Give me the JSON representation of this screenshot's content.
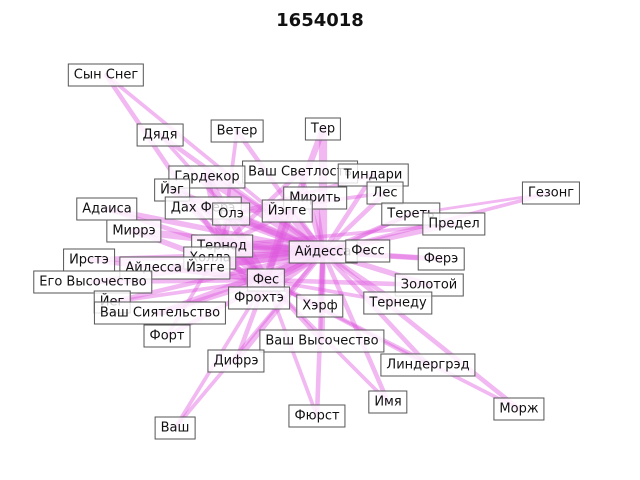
{
  "title": "1654018",
  "edge_color": "#dd55dd",
  "nodes": [
    {
      "id": "syn-sneg",
      "label": "Сын Снег"
    },
    {
      "id": "dyadya",
      "label": "Дядя"
    },
    {
      "id": "veter",
      "label": "Ветер"
    },
    {
      "id": "ter",
      "label": "Тер"
    },
    {
      "id": "vash-svetlost",
      "label": "Ваш Светлость"
    },
    {
      "id": "tindari",
      "label": "Тиндари"
    },
    {
      "id": "gezong",
      "label": "Гезонг"
    },
    {
      "id": "gardekor",
      "label": "Гардекор"
    },
    {
      "id": "ieg",
      "label": "Йэг"
    },
    {
      "id": "mirit",
      "label": "Мирить"
    },
    {
      "id": "les",
      "label": "Лес"
    },
    {
      "id": "adaisa",
      "label": "Адаиса"
    },
    {
      "id": "dakh-fere",
      "label": "Дах Ферэ"
    },
    {
      "id": "ole",
      "label": "Олэ"
    },
    {
      "id": "iegge",
      "label": "Йэггe"
    },
    {
      "id": "teret",
      "label": "Тереть"
    },
    {
      "id": "predel",
      "label": "Предел"
    },
    {
      "id": "mirre",
      "label": "Миррэ"
    },
    {
      "id": "ternod",
      "label": "Тернод"
    },
    {
      "id": "aidessa",
      "label": "Айдесса"
    },
    {
      "id": "fess",
      "label": "Фесс"
    },
    {
      "id": "irste",
      "label": "Ирстэ"
    },
    {
      "id": "kholla",
      "label": "Холла"
    },
    {
      "id": "aidessa-iegge",
      "label": "Айдесса Йэгге"
    },
    {
      "id": "fere",
      "label": "Ферэ"
    },
    {
      "id": "ego-vysochestvo",
      "label": "Его Высочество"
    },
    {
      "id": "fes",
      "label": "Фес"
    },
    {
      "id": "zolotoi",
      "label": "Золотой"
    },
    {
      "id": "frokhte",
      "label": "Фрохтэ"
    },
    {
      "id": "ieg2",
      "label": "Йег"
    },
    {
      "id": "terf",
      "label": "Хэрф"
    },
    {
      "id": "ternedu",
      "label": "Тернеду"
    },
    {
      "id": "vash-siyatelstvo",
      "label": "Ваш Сиятельство"
    },
    {
      "id": "fort",
      "label": "Форт"
    },
    {
      "id": "vash-vysochestvo",
      "label": "Ваш Высочество"
    },
    {
      "id": "difre",
      "label": "Дифрэ"
    },
    {
      "id": "lindergred",
      "label": "Линдергрэд"
    },
    {
      "id": "imya",
      "label": "Имя"
    },
    {
      "id": "morzh",
      "label": "Морж"
    },
    {
      "id": "fyurst",
      "label": "Фюрст"
    },
    {
      "id": "vash",
      "label": "Ваш"
    }
  ],
  "edges": [
    {
      "source": "syn-sneg",
      "target": "ternod",
      "weight": 4
    },
    {
      "source": "syn-sneg",
      "target": "aidessa",
      "weight": 3
    },
    {
      "source": "dyadya",
      "target": "aidessa",
      "weight": 4
    },
    {
      "source": "dyadya",
      "target": "ole",
      "weight": 3
    },
    {
      "source": "veter",
      "target": "aidessa",
      "weight": 4
    },
    {
      "source": "veter",
      "target": "ternod",
      "weight": 3
    },
    {
      "source": "ter",
      "target": "aidessa",
      "weight": 8
    },
    {
      "source": "ter",
      "target": "fes",
      "weight": 6
    },
    {
      "source": "vash-svetlost",
      "target": "aidessa",
      "weight": 5
    },
    {
      "source": "vash-svetlost",
      "target": "ternod",
      "weight": 4
    },
    {
      "source": "tindari",
      "target": "aidessa",
      "weight": 4
    },
    {
      "source": "tindari",
      "target": "ole",
      "weight": 3
    },
    {
      "source": "gezong",
      "target": "aidessa",
      "weight": 3
    },
    {
      "source": "gezong",
      "target": "teret",
      "weight": 2
    },
    {
      "source": "gardekor",
      "target": "aidessa",
      "weight": 10
    },
    {
      "source": "gardekor",
      "target": "fes",
      "weight": 7
    },
    {
      "source": "gardekor",
      "target": "ternod",
      "weight": 6
    },
    {
      "source": "ieg",
      "target": "aidessa",
      "weight": 6
    },
    {
      "source": "ieg",
      "target": "fes",
      "weight": 5
    },
    {
      "source": "mirit",
      "target": "aidessa",
      "weight": 5
    },
    {
      "source": "mirit",
      "target": "ternod",
      "weight": 4
    },
    {
      "source": "les",
      "target": "aidessa",
      "weight": 4
    },
    {
      "source": "les",
      "target": "ole",
      "weight": 3
    },
    {
      "source": "adaisa",
      "target": "aidessa",
      "weight": 5
    },
    {
      "source": "adaisa",
      "target": "ternod",
      "weight": 4
    },
    {
      "source": "dakh-fere",
      "target": "aidessa",
      "weight": 7
    },
    {
      "source": "dakh-fere",
      "target": "fes",
      "weight": 5
    },
    {
      "source": "ole",
      "target": "aidessa",
      "weight": 8
    },
    {
      "source": "ole",
      "target": "ternod",
      "weight": 5
    },
    {
      "source": "iegge",
      "target": "aidessa",
      "weight": 8
    },
    {
      "source": "iegge",
      "target": "fes",
      "weight": 7
    },
    {
      "source": "teret",
      "target": "aidessa",
      "weight": 4
    },
    {
      "source": "teret",
      "target": "fes",
      "weight": 3
    },
    {
      "source": "predel",
      "target": "aidessa",
      "weight": 5
    },
    {
      "source": "predel",
      "target": "ternod",
      "weight": 3
    },
    {
      "source": "mirre",
      "target": "aidessa",
      "weight": 7
    },
    {
      "source": "mirre",
      "target": "fes",
      "weight": 5
    },
    {
      "source": "ternod",
      "target": "aidessa",
      "weight": 9
    },
    {
      "source": "ternod",
      "target": "fes",
      "weight": 8
    },
    {
      "source": "aidessa",
      "target": "fes",
      "weight": 12
    },
    {
      "source": "fess",
      "target": "aidessa",
      "weight": 6
    },
    {
      "source": "fess",
      "target": "ternod",
      "weight": 5
    },
    {
      "source": "irste",
      "target": "aidessa",
      "weight": 5
    },
    {
      "source": "irste",
      "target": "fes",
      "weight": 4
    },
    {
      "source": "kholla",
      "target": "aidessa",
      "weight": 6
    },
    {
      "source": "kholla",
      "target": "fes",
      "weight": 5
    },
    {
      "source": "aidessa-iegge",
      "target": "aidessa",
      "weight": 9
    },
    {
      "source": "aidessa-iegge",
      "target": "fes",
      "weight": 7
    },
    {
      "source": "fere",
      "target": "aidessa",
      "weight": 5
    },
    {
      "source": "fere",
      "target": "ternod",
      "weight": 4
    },
    {
      "source": "ego-vysochestvo",
      "target": "aidessa",
      "weight": 5
    },
    {
      "source": "ego-vysochestvo",
      "target": "fes",
      "weight": 4
    },
    {
      "source": "zolotoi",
      "target": "aidessa",
      "weight": 5
    },
    {
      "source": "zolotoi",
      "target": "fes",
      "weight": 4
    },
    {
      "source": "frokhte",
      "target": "aidessa",
      "weight": 6
    },
    {
      "source": "frokhte",
      "target": "ternod",
      "weight": 5
    },
    {
      "source": "ieg2",
      "target": "aidessa",
      "weight": 4
    },
    {
      "source": "ieg2",
      "target": "fes",
      "weight": 3
    },
    {
      "source": "terf",
      "target": "aidessa",
      "weight": 5
    },
    {
      "source": "terf",
      "target": "fes",
      "weight": 4
    },
    {
      "source": "ternedu",
      "target": "aidessa",
      "weight": 4
    },
    {
      "source": "ternedu",
      "target": "fes",
      "weight": 3
    },
    {
      "source": "vash-siyatelstvo",
      "target": "aidessa",
      "weight": 6
    },
    {
      "source": "vash-siyatelstvo",
      "target": "fes",
      "weight": 5
    },
    {
      "source": "fort",
      "target": "aidessa",
      "weight": 4
    },
    {
      "source": "fort",
      "target": "ternod",
      "weight": 3
    },
    {
      "source": "vash-vysochestvo",
      "target": "aidessa",
      "weight": 5
    },
    {
      "source": "vash-vysochestvo",
      "target": "fes",
      "weight": 4
    },
    {
      "source": "difre",
      "target": "aidessa",
      "weight": 5
    },
    {
      "source": "difre",
      "target": "fes",
      "weight": 4
    },
    {
      "source": "lindergred",
      "target": "aidessa",
      "weight": 4
    },
    {
      "source": "lindergred",
      "target": "fes",
      "weight": 3
    },
    {
      "source": "imya",
      "target": "aidessa",
      "weight": 4
    },
    {
      "source": "imya",
      "target": "fes",
      "weight": 3
    },
    {
      "source": "morzh",
      "target": "aidessa",
      "weight": 4
    },
    {
      "source": "morzh",
      "target": "fes",
      "weight": 3
    },
    {
      "source": "fyurst",
      "target": "aidessa",
      "weight": 4
    },
    {
      "source": "fyurst",
      "target": "fes",
      "weight": 3
    },
    {
      "source": "vash",
      "target": "aidessa",
      "weight": 3
    },
    {
      "source": "vash",
      "target": "fes",
      "weight": 3
    }
  ]
}
